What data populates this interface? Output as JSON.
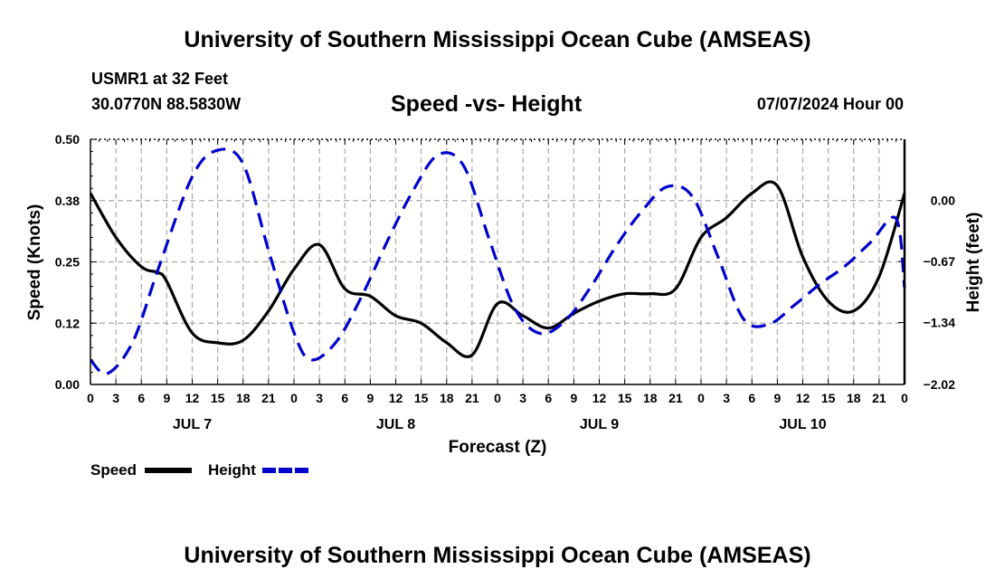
{
  "header": {
    "title": "University of Southern Mississippi Ocean Cube (AMSEAS)",
    "station": "USMR1 at 32 Feet",
    "coords": "30.0770N  88.5830W",
    "date": "07/07/2024 Hour 00",
    "footer_title": "University of Southern Mississippi Ocean Cube (AMSEAS)"
  },
  "colors": {
    "speed": "#000000",
    "height": "#0000cc",
    "grid": "#aaaaaa"
  },
  "chart_data": {
    "type": "line",
    "title": "Speed -vs- Height",
    "xlabel": "Forecast (Z)",
    "ylabel": "Speed (Knots)",
    "ylabel_right": "Height (feet)",
    "xlim": [
      0,
      96
    ],
    "ylim": [
      0,
      0.5
    ],
    "ylim_right": [
      -2.02,
      0.67
    ],
    "yticks": [
      {
        "v": 0.5,
        "label": "0.50"
      },
      {
        "v": 0.375,
        "label": "0.38"
      },
      {
        "v": 0.25,
        "label": "0.25"
      },
      {
        "v": 0.125,
        "label": "0.12"
      },
      {
        "v": 0.0,
        "label": "0.00"
      }
    ],
    "yticks_right": [
      {
        "v": 0.0,
        "label": "0.00"
      },
      {
        "v": -0.67,
        "label": "-0.67"
      },
      {
        "v": -1.34,
        "label": "-1.34"
      },
      {
        "v": -2.02,
        "label": "-2.02"
      }
    ],
    "xtick_labels": [
      "0",
      "3",
      "6",
      "9",
      "12",
      "15",
      "18",
      "21",
      "0",
      "3",
      "6",
      "9",
      "12",
      "15",
      "18",
      "21",
      "0",
      "3",
      "6",
      "9",
      "12",
      "15",
      "18",
      "21",
      "0",
      "3",
      "6",
      "9",
      "12",
      "15",
      "18",
      "21",
      "0"
    ],
    "day_labels": [
      {
        "x": 12,
        "label": "JUL 7"
      },
      {
        "x": 36,
        "label": "JUL 8"
      },
      {
        "x": 60,
        "label": "JUL 9"
      },
      {
        "x": 84,
        "label": "JUL 10"
      }
    ],
    "legend": [
      {
        "name": "Speed",
        "style": "solid"
      },
      {
        "name": "Height",
        "style": "dashed"
      }
    ],
    "series": [
      {
        "name": "Speed",
        "axis": "left",
        "x": [
          0,
          3,
          6,
          8,
          9,
          12,
          15,
          18,
          21,
          24,
          27,
          30,
          33,
          36,
          39,
          42,
          45,
          48,
          51,
          54,
          57,
          60,
          63,
          66,
          69,
          72,
          75,
          78,
          81,
          84,
          87,
          90,
          93,
          96
        ],
        "y": [
          0.39,
          0.3,
          0.24,
          0.228,
          0.21,
          0.105,
          0.085,
          0.09,
          0.15,
          0.235,
          0.285,
          0.195,
          0.18,
          0.14,
          0.125,
          0.085,
          0.06,
          0.165,
          0.14,
          0.115,
          0.145,
          0.17,
          0.185,
          0.185,
          0.195,
          0.3,
          0.34,
          0.39,
          0.405,
          0.26,
          0.17,
          0.15,
          0.22,
          0.39
        ]
      },
      {
        "name": "Height",
        "axis": "right",
        "x": [
          0,
          2,
          5,
          8,
          12,
          15,
          18,
          21,
          24,
          26,
          29,
          32,
          35,
          38,
          41,
          44,
          47,
          50,
          53,
          56,
          59,
          62,
          65,
          68,
          71,
          74,
          77,
          80,
          83,
          86,
          89,
          92,
          95,
          96
        ],
        "y": [
          -1.75,
          -1.9,
          -1.55,
          -0.75,
          0.26,
          0.55,
          0.4,
          -0.55,
          -1.45,
          -1.75,
          -1.55,
          -1.05,
          -0.45,
          0.1,
          0.5,
          0.38,
          -0.42,
          -1.18,
          -1.46,
          -1.32,
          -0.95,
          -0.5,
          -0.12,
          0.15,
          0.04,
          -0.62,
          -1.3,
          -1.36,
          -1.15,
          -0.92,
          -0.72,
          -0.46,
          -0.2,
          -0.96
        ]
      }
    ]
  }
}
